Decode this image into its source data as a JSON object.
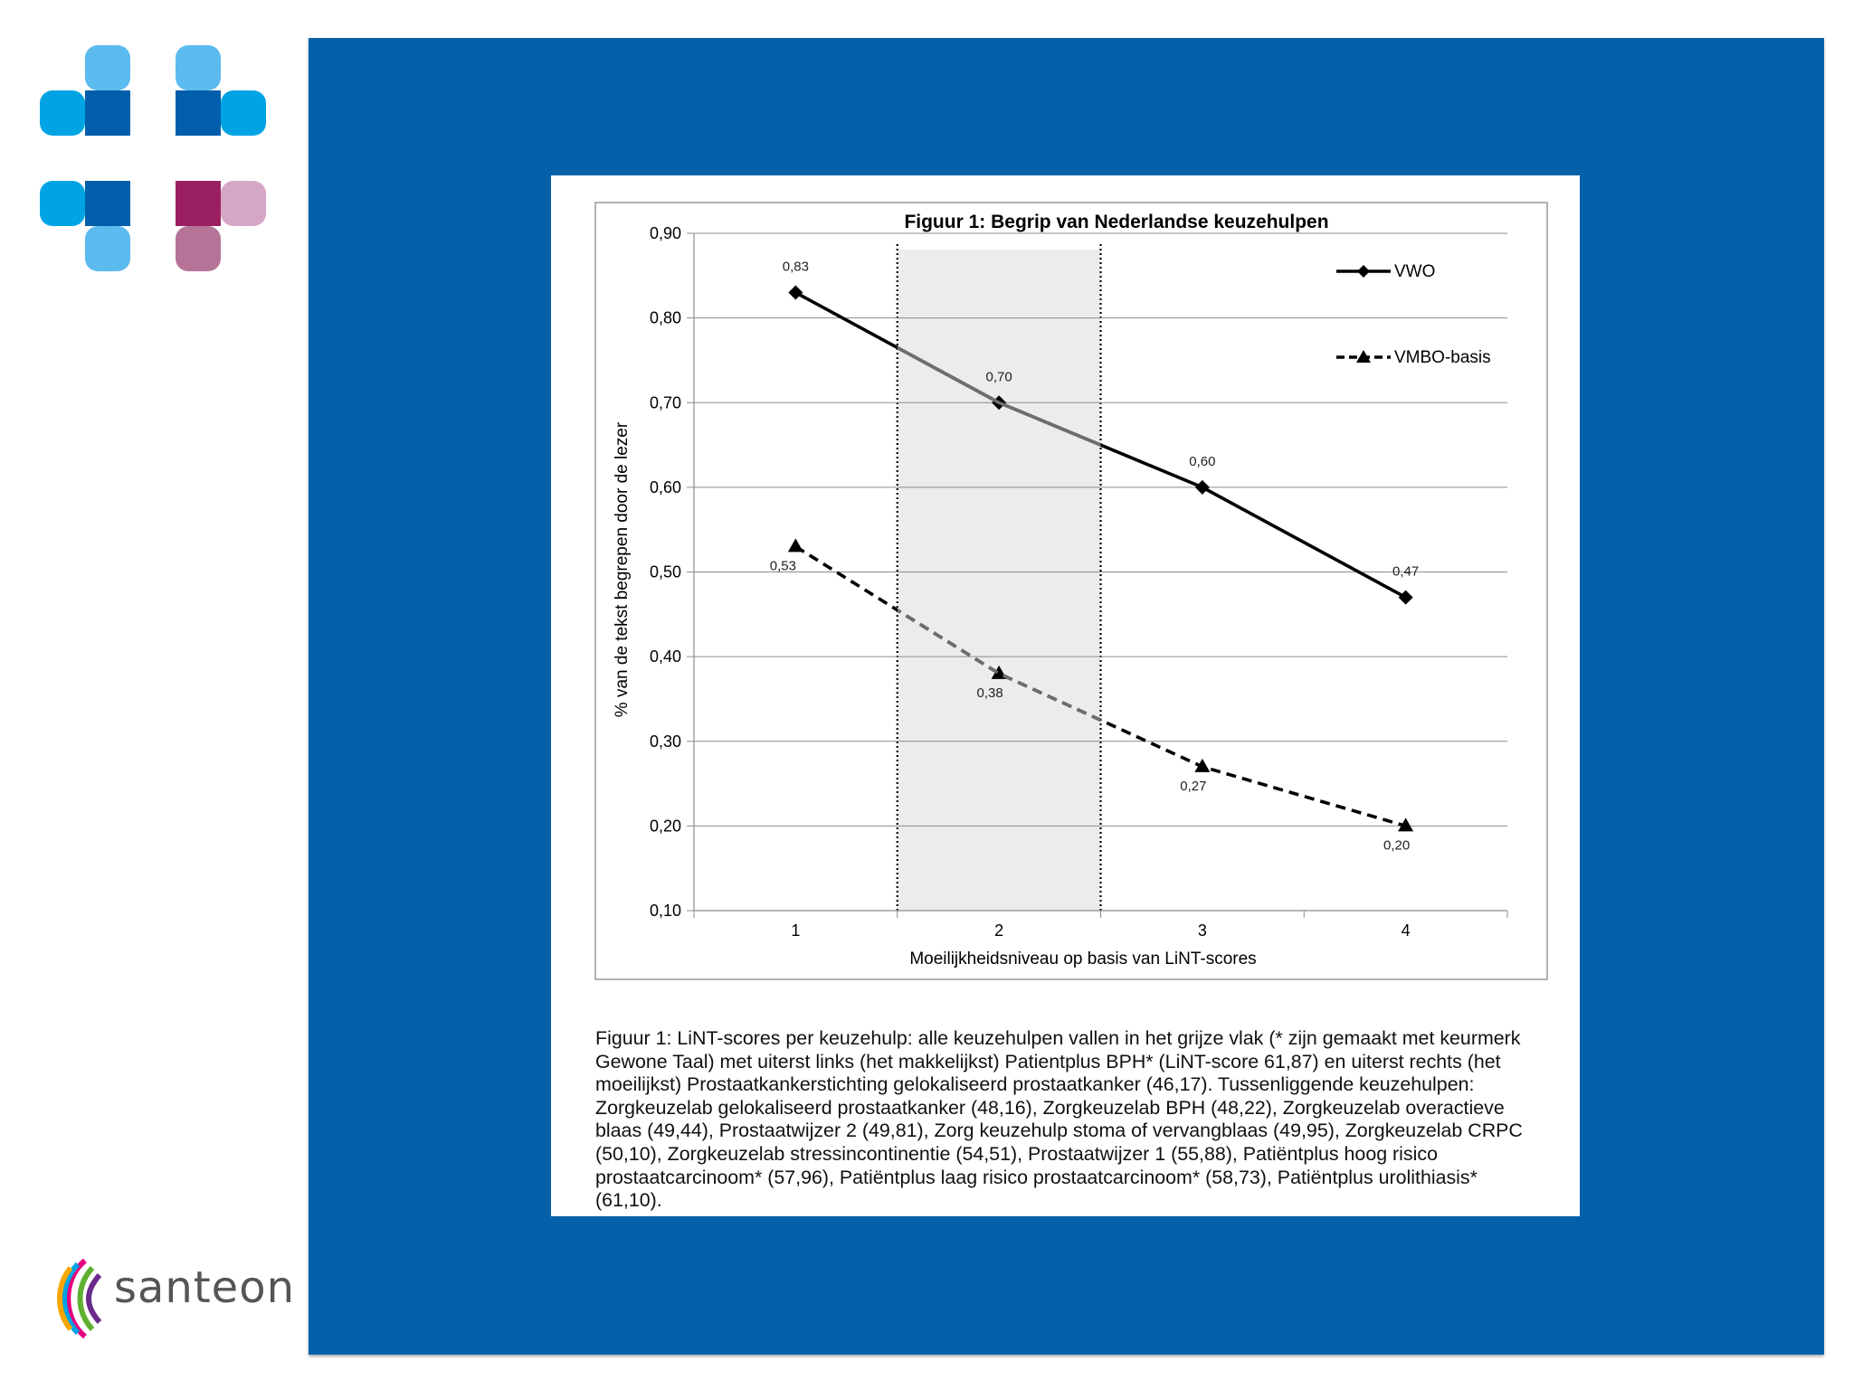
{
  "brand": {
    "name": "santeon",
    "colors": [
      "#00a3e4",
      "#005eab",
      "#5bbbef",
      "#9a2062",
      "#d6a6c6",
      "#b57497"
    ]
  },
  "slide": {
    "background": "#0461a9"
  },
  "chart_data": {
    "type": "line",
    "title": "Figuur 1: Begrip van Nederlandse keuzehulpen",
    "xlabel": "Moeilijkheidsniveau op basis van LiNT-scores",
    "ylabel": "% van de tekst begrepen door de lezer",
    "categories": [
      "1",
      "2",
      "3",
      "4"
    ],
    "ylim": [
      0.1,
      0.9
    ],
    "yticks": [
      "0,10",
      "0,20",
      "0,30",
      "0,40",
      "0,50",
      "0,60",
      "0,70",
      "0,80",
      "0,90"
    ],
    "grid": true,
    "legend_position": "top-right",
    "shaded_region": {
      "from": 1.5,
      "to": 2.5
    },
    "series": [
      {
        "name": "VWO",
        "values": [
          0.83,
          0.7,
          0.6,
          0.47
        ],
        "labels": [
          "0,83",
          "0,70",
          "0,60",
          "0,47"
        ],
        "marker": "diamond",
        "style": "solid",
        "color": "#000000"
      },
      {
        "name": "VMBO-basis",
        "values": [
          0.53,
          0.38,
          0.27,
          0.2
        ],
        "labels": [
          "0,53",
          "0,38",
          "0,27",
          "0,20"
        ],
        "marker": "triangle",
        "style": "dashed",
        "color": "#000000"
      }
    ]
  },
  "caption": "Figuur 1: LiNT-scores per keuzehulp: alle keuzehulpen vallen in het grijze vlak (* zijn gemaakt met keurmerk Gewone Taal) met uiterst links (het makkelijkst) Patientplus BPH* (LiNT-score 61,87) en uiterst rechts (het moeilijkst) Prostaatkankerstichting gelokaliseerd prostaatkanker (46,17). Tussenliggende keuzehulpen: Zorgkeuzelab gelokaliseerd prostaatkanker (48,16), Zorgkeuzelab BPH (48,22), Zorgkeuzelab overactieve blaas (49,44), Prostaatwijzer 2 (49,81), Zorg keuzehulp stoma of vervangblaas (49,95), Zorgkeuzelab CRPC (50,10), Zorgkeuzelab stressincontinentie (54,51), Prostaatwijzer 1 (55,88), Patiëntplus hoog risico prostaatcarcinoom* (57,96), Patiëntplus laag risico prostaatcarcinoom* (58,73), Patiëntplus urolithiasis* (61,10)."
}
